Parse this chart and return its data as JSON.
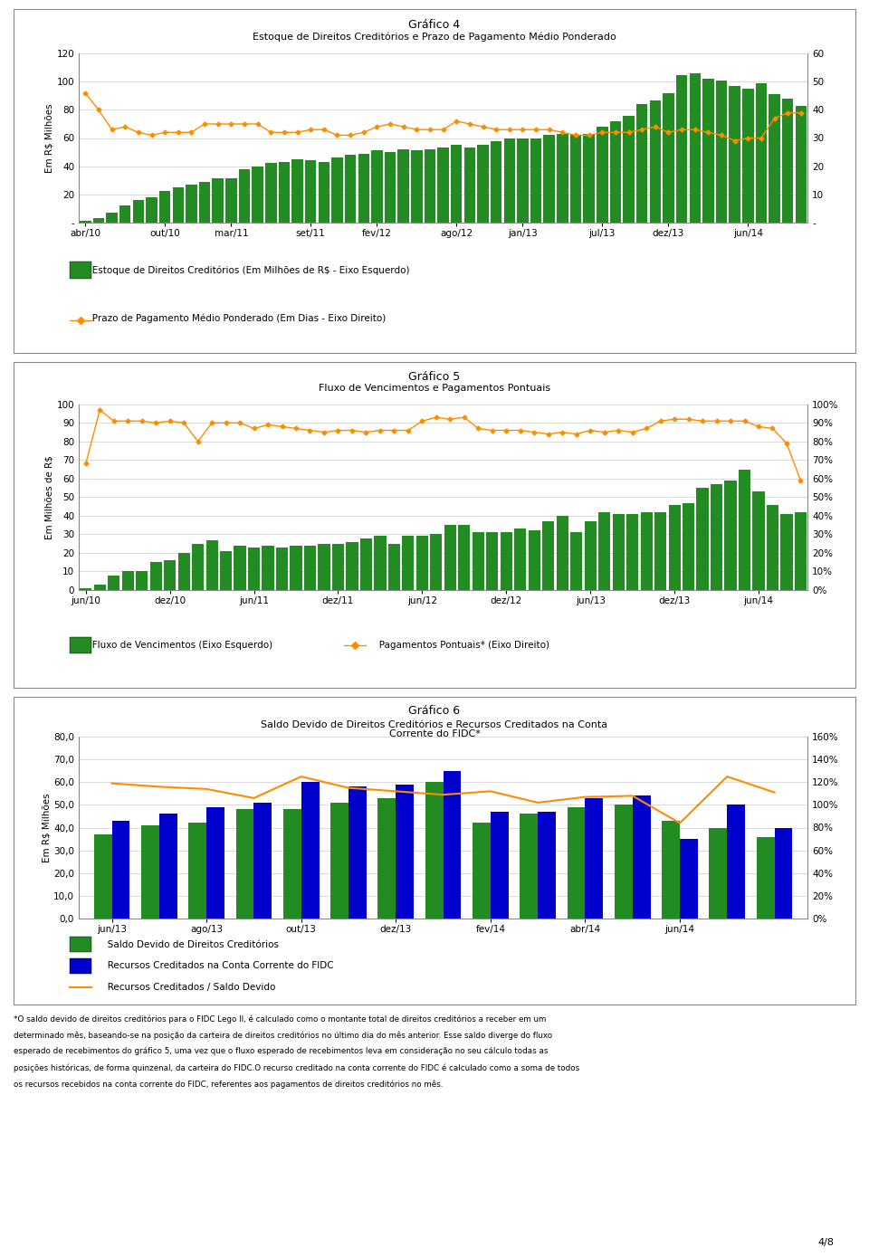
{
  "chart4": {
    "title": "Gráfico 4",
    "subtitle": "Estoque de Direitos Creditórios e Prazo de Pagamento Médio Ponderado",
    "ylabel_left": "Em R$ Milhões",
    "bar_color": "#228B22",
    "line_color": "#FF8C00",
    "bar_ylim": [
      0,
      120
    ],
    "line_ylim": [
      0,
      60
    ],
    "bar_yticks": [
      0,
      20,
      40,
      60,
      80,
      100,
      120
    ],
    "line_yticks": [
      0,
      10,
      20,
      30,
      40,
      50,
      60
    ],
    "bar_ytick_labels": [
      "-",
      "20",
      "40",
      "60",
      "80",
      "100",
      "120"
    ],
    "line_ytick_labels": [
      "-",
      "10",
      "20",
      "30",
      "40",
      "50",
      "60"
    ],
    "xtick_labels": [
      "abr/10",
      "out/10",
      "mar/11",
      "set/11",
      "fev/12",
      "ago/12",
      "jan/13",
      "jul/13",
      "dez/13",
      "jun/14"
    ],
    "xtick_positions": [
      0,
      6,
      11,
      17,
      22,
      28,
      33,
      39,
      44,
      50
    ],
    "bar_values": [
      1,
      3,
      7,
      12,
      16,
      18,
      22,
      25,
      27,
      29,
      31,
      31,
      38,
      40,
      42,
      43,
      45,
      44,
      43,
      46,
      48,
      49,
      51,
      50,
      52,
      51,
      52,
      53,
      55,
      53,
      55,
      58,
      60,
      60,
      60,
      62,
      63,
      62,
      63,
      68,
      72,
      76,
      84,
      87,
      92,
      105,
      106,
      102,
      101,
      97,
      95,
      99,
      91,
      88,
      83
    ],
    "line_values": [
      46,
      40,
      33,
      34,
      32,
      31,
      32,
      32,
      32,
      35,
      35,
      35,
      35,
      35,
      32,
      32,
      32,
      33,
      33,
      31,
      31,
      32,
      34,
      35,
      34,
      33,
      33,
      33,
      36,
      35,
      34,
      33,
      33,
      33,
      33,
      33,
      32,
      31,
      31,
      32,
      32,
      32,
      33,
      34,
      32,
      33,
      33,
      32,
      31,
      29,
      30,
      30,
      37,
      39,
      39
    ],
    "legend1": "Estoque de Direitos Creditórios (Em Milhões de R$ - Eixo Esquerdo)",
    "legend2": "Prazo de Pagamento Médio Ponderado (Em Dias - Eixo Direito)"
  },
  "chart5": {
    "title": "Gráfico 5",
    "subtitle": "Fluxo de Vencimentos e Pagamentos Pontuais",
    "ylabel_left": "Em Milhões de R$",
    "bar_color": "#228B22",
    "line_color": "#FF8C00",
    "bar_ylim": [
      0,
      100
    ],
    "line_ylim": [
      0,
      1.0
    ],
    "bar_yticks": [
      0,
      10,
      20,
      30,
      40,
      50,
      60,
      70,
      80,
      90,
      100
    ],
    "line_yticks": [
      0.0,
      0.1,
      0.2,
      0.3,
      0.4,
      0.5,
      0.6,
      0.7,
      0.8,
      0.9,
      1.0
    ],
    "bar_ytick_labels": [
      "0",
      "10",
      "20",
      "30",
      "40",
      "50",
      "60",
      "70",
      "80",
      "90",
      "100"
    ],
    "line_ytick_labels": [
      "0%",
      "10%",
      "20%",
      "30%",
      "40%",
      "50%",
      "60%",
      "70%",
      "80%",
      "90%",
      "100%"
    ],
    "xtick_labels": [
      "jun/10",
      "dez/10",
      "jun/11",
      "dez/11",
      "jun/12",
      "dez/12",
      "jun/13",
      "dez/13",
      "jun/14"
    ],
    "xtick_positions": [
      0,
      6,
      12,
      18,
      24,
      30,
      36,
      42,
      48
    ],
    "bar_values": [
      1,
      3,
      8,
      10,
      10,
      15,
      16,
      20,
      25,
      27,
      21,
      24,
      23,
      24,
      23,
      24,
      24,
      25,
      25,
      26,
      28,
      29,
      25,
      29,
      29,
      30,
      35,
      35,
      31,
      31,
      31,
      33,
      32,
      37,
      40,
      31,
      37,
      42,
      41,
      41,
      42,
      42,
      46,
      47,
      55,
      57,
      59,
      65,
      53,
      46,
      41,
      42
    ],
    "line_values": [
      0.68,
      0.97,
      0.91,
      0.91,
      0.91,
      0.9,
      0.91,
      0.9,
      0.8,
      0.9,
      0.9,
      0.9,
      0.87,
      0.89,
      0.88,
      0.87,
      0.86,
      0.85,
      0.86,
      0.86,
      0.85,
      0.86,
      0.86,
      0.86,
      0.91,
      0.93,
      0.92,
      0.93,
      0.87,
      0.86,
      0.86,
      0.86,
      0.85,
      0.84,
      0.85,
      0.84,
      0.86,
      0.85,
      0.86,
      0.85,
      0.87,
      0.91,
      0.92,
      0.92,
      0.91,
      0.91,
      0.91,
      0.91,
      0.88,
      0.87,
      0.79,
      0.59
    ],
    "legend1": "Fluxo de Vencimentos (Eixo Esquerdo)",
    "legend2": "Pagamentos Pontuais* (Eixo Direito)"
  },
  "chart6": {
    "title": "Gráfico 6",
    "subtitle": "Saldo Devido de Direitos Creditórios e Recursos Creditados na Conta\nCorrente do FIDC*",
    "ylabel_left": "Em R$ Milhões",
    "bar_color_green": "#228B22",
    "bar_color_blue": "#0000CD",
    "line_color": "#FF8C00",
    "bar_ylim": [
      0,
      80
    ],
    "line_ylim": [
      0,
      1.6
    ],
    "bar_yticks": [
      0,
      10,
      20,
      30,
      40,
      50,
      60,
      70,
      80
    ],
    "line_yticks": [
      0.0,
      0.2,
      0.4,
      0.6,
      0.8,
      1.0,
      1.2,
      1.4,
      1.6
    ],
    "bar_ytick_labels": [
      "0,0",
      "10,0",
      "20,0",
      "30,0",
      "40,0",
      "50,0",
      "60,0",
      "70,0",
      "80,0"
    ],
    "line_ytick_labels": [
      "0%",
      "20%",
      "40%",
      "60%",
      "80%",
      "100%",
      "120%",
      "140%",
      "160%"
    ],
    "xtick_labels": [
      "jun/13",
      "ago/13",
      "out/13",
      "dez/13",
      "fev/14",
      "abr/14",
      "jun/14"
    ],
    "xtick_positions": [
      0,
      2,
      4,
      6,
      8,
      10,
      12
    ],
    "green_values": [
      37,
      41,
      42,
      48,
      48,
      51,
      53,
      60,
      42,
      46,
      49,
      50,
      43,
      40,
      36
    ],
    "blue_values": [
      43,
      46,
      49,
      51,
      60,
      58,
      59,
      65,
      47,
      47,
      53,
      54,
      35,
      50,
      40
    ],
    "line_values": [
      1.19,
      1.16,
      1.14,
      1.06,
      1.25,
      1.15,
      1.12,
      1.09,
      1.12,
      1.02,
      1.07,
      1.08,
      0.84,
      1.25,
      1.11
    ],
    "legend1": "Saldo Devido de Direitos Creditórios",
    "legend2": "Recursos Creditados na Conta Corrente do FIDC",
    "legend3": "Recursos Creditados / Saldo Devido"
  },
  "footnote_lines": [
    "*O saldo devido de direitos creditórios para o FIDC Lego II, é calculado como o montante total de direitos creditórios a receber em um",
    "determinado mês, baseando-se na posição da carteira de direitos creditórios no último dia do mês anterior. Esse saldo diverge do fluxo",
    "esperado de recebimentos do gráfico 5, uma vez que o fluxo esperado de recebimentos leva em consideração no seu cálculo todas as",
    "posições históricas, de forma quinzenal, da carteira do FIDC.O recurso creditado na conta corrente do FIDC é calculado como a soma de todos",
    "os recursos recebidos na conta corrente do FIDC, referentes aos pagamentos de direitos creditórios no mês."
  ],
  "page_label": "4/8",
  "background_color": "#FFFFFF"
}
